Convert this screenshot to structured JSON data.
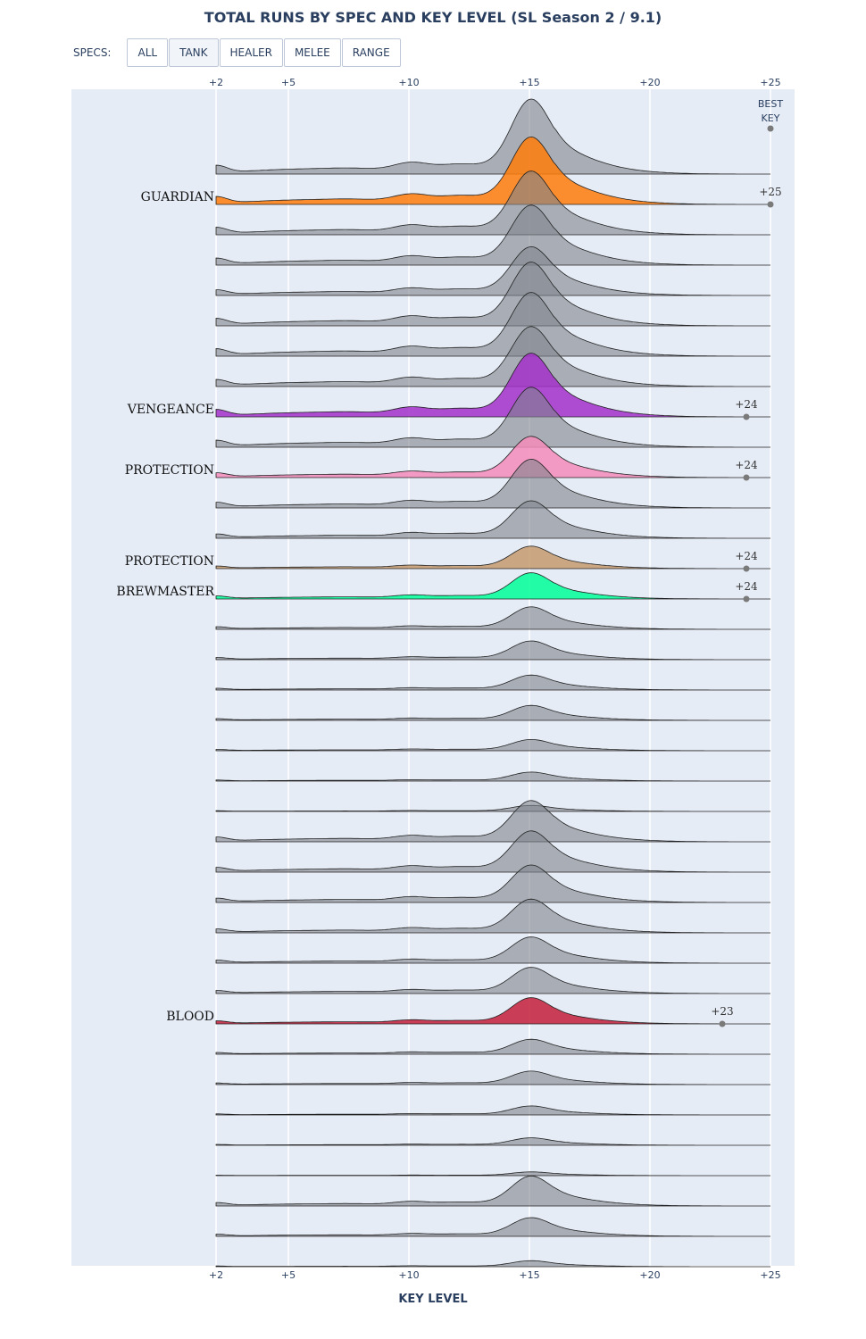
{
  "title": "TOTAL RUNS BY SPEC AND KEY LEVEL (SL Season 2 / 9.1)",
  "specs_filter": {
    "label": "SPECS:",
    "buttons": [
      "ALL",
      "TANK",
      "HEALER",
      "MELEE",
      "RANGE"
    ],
    "active": "TANK"
  },
  "chart_data": {
    "type": "area",
    "xlabel": "KEY LEVEL",
    "xlim": [
      2,
      25
    ],
    "x_ticks": [
      "+2",
      "+5",
      "+10",
      "+15",
      "+20",
      "+25"
    ],
    "best_key_header": [
      "BEST",
      "KEY"
    ],
    "best_key_header_value": 25,
    "gray_color": "#7f848c",
    "series": [
      {
        "name": "",
        "scale": 1.0
      },
      {
        "name": "GUARDIAN",
        "color": "#ff7c0a",
        "scale": 0.9,
        "best": 25,
        "best_label": "+25"
      },
      {
        "name": "",
        "scale": 0.85
      },
      {
        "name": "",
        "scale": 0.8
      },
      {
        "name": "",
        "scale": 0.65
      },
      {
        "name": "",
        "scale": 0.85
      },
      {
        "name": "",
        "scale": 0.85
      },
      {
        "name": "",
        "scale": 0.8
      },
      {
        "name": "VENGEANCE",
        "color": "#a330c9",
        "scale": 0.85,
        "best": 24,
        "best_label": "+24"
      },
      {
        "name": "",
        "scale": 0.8
      },
      {
        "name": "PROTECTION",
        "color": "#f48cba",
        "scale": 0.55,
        "best": 24,
        "best_label": "+24"
      },
      {
        "name": "",
        "scale": 0.65
      },
      {
        "name": "",
        "scale": 0.5
      },
      {
        "name": "PROTECTION",
        "color": "#c69b6d",
        "scale": 0.3,
        "best": 24,
        "best_label": "+24"
      },
      {
        "name": "BREWMASTER",
        "color": "#00ff98",
        "scale": 0.35,
        "best": 24,
        "best_label": "+24"
      },
      {
        "name": "",
        "scale": 0.3
      },
      {
        "name": "",
        "scale": 0.25
      },
      {
        "name": "",
        "scale": 0.2
      },
      {
        "name": "",
        "scale": 0.2
      },
      {
        "name": "",
        "scale": 0.15
      },
      {
        "name": "",
        "scale": 0.12
      },
      {
        "name": "",
        "scale": 0.08
      },
      {
        "name": "",
        "scale": 0.55
      },
      {
        "name": "",
        "scale": 0.55
      },
      {
        "name": "",
        "scale": 0.5
      },
      {
        "name": "",
        "scale": 0.45
      },
      {
        "name": "",
        "scale": 0.35
      },
      {
        "name": "",
        "scale": 0.35
      },
      {
        "name": "BLOOD",
        "color": "#c41e3a",
        "scale": 0.35,
        "best": 23,
        "best_label": "+23"
      },
      {
        "name": "",
        "scale": 0.2
      },
      {
        "name": "",
        "scale": 0.18
      },
      {
        "name": "",
        "scale": 0.12
      },
      {
        "name": "",
        "scale": 0.1
      },
      {
        "name": "",
        "scale": 0.05
      },
      {
        "name": "",
        "scale": 0.4
      },
      {
        "name": "",
        "scale": 0.25
      },
      {
        "name": "",
        "scale": 0.08
      }
    ]
  }
}
